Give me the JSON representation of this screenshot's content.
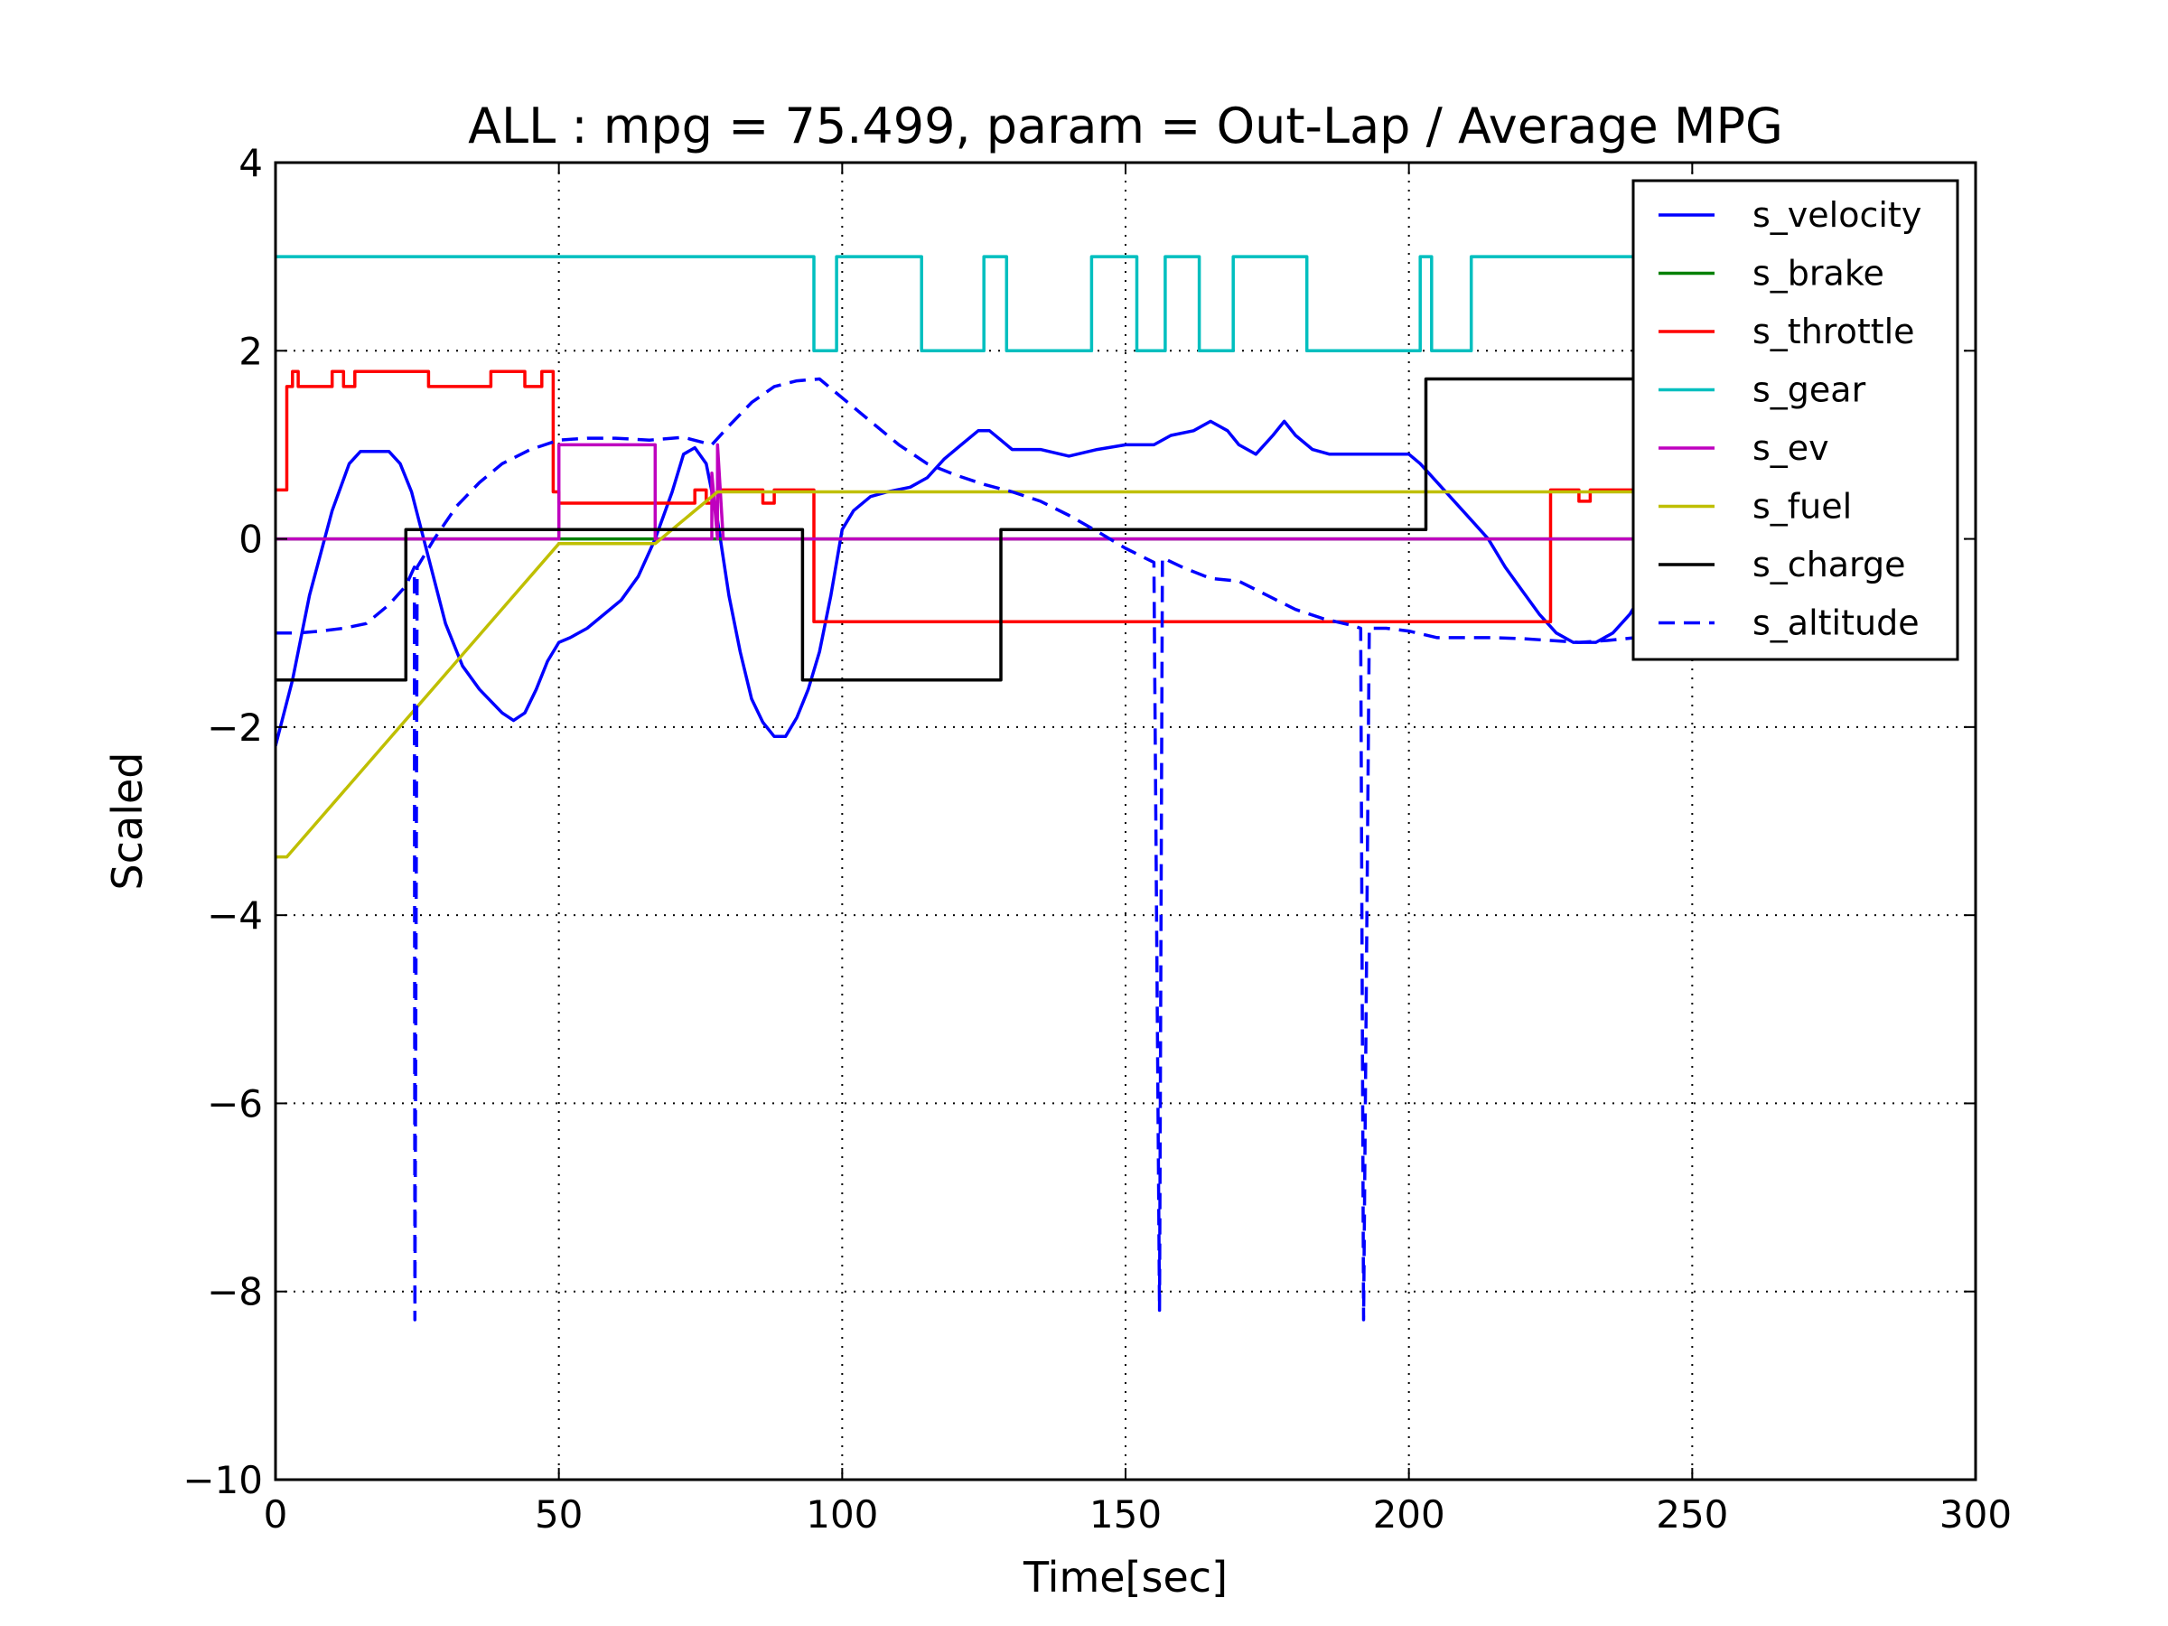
{
  "chart_data": {
    "type": "line",
    "title": "ALL : mpg = 75.499, param = Out-Lap / Average MPG",
    "xlabel": "Time[sec]",
    "ylabel": "Scaled",
    "xlim": [
      0,
      300
    ],
    "ylim": [
      -10,
      4
    ],
    "xticks": [
      0,
      50,
      100,
      150,
      200,
      250,
      300
    ],
    "yticks": [
      -10,
      -8,
      -6,
      -4,
      -2,
      0,
      2,
      4
    ],
    "xtick_labels": [
      "0",
      "50",
      "100",
      "150",
      "200",
      "250",
      "300"
    ],
    "ytick_labels": [
      "−10",
      "−8",
      "−6",
      "−4",
      "−2",
      "0",
      "2",
      "4"
    ],
    "grid": true,
    "legend_position": "top-right",
    "series": [
      {
        "name": "s_velocity",
        "color": "#0000ff",
        "style": "solid",
        "points": [
          [
            0,
            -2.2
          ],
          [
            3,
            -1.5
          ],
          [
            6,
            -0.6
          ],
          [
            10,
            0.3
          ],
          [
            13,
            0.8
          ],
          [
            15,
            0.93
          ],
          [
            20,
            0.93
          ],
          [
            22,
            0.8
          ],
          [
            24,
            0.5
          ],
          [
            27,
            -0.2
          ],
          [
            30,
            -0.9
          ],
          [
            33,
            -1.35
          ],
          [
            36,
            -1.6
          ],
          [
            40,
            -1.85
          ],
          [
            42,
            -1.93
          ],
          [
            44,
            -1.85
          ],
          [
            46,
            -1.6
          ],
          [
            48,
            -1.3
          ],
          [
            50,
            -1.1
          ],
          [
            52,
            -1.05
          ],
          [
            55,
            -0.95
          ],
          [
            58,
            -0.8
          ],
          [
            61,
            -0.65
          ],
          [
            64,
            -0.4
          ],
          [
            67,
            0.0
          ],
          [
            70,
            0.5
          ],
          [
            72,
            0.9
          ],
          [
            74,
            0.97
          ],
          [
            76,
            0.8
          ],
          [
            78,
            0.2
          ],
          [
            80,
            -0.6
          ],
          [
            82,
            -1.2
          ],
          [
            84,
            -1.7
          ],
          [
            86,
            -1.95
          ],
          [
            88,
            -2.1
          ],
          [
            90,
            -2.1
          ],
          [
            92,
            -1.9
          ],
          [
            94,
            -1.6
          ],
          [
            96,
            -1.2
          ],
          [
            98,
            -0.6
          ],
          [
            100,
            0.1
          ],
          [
            102,
            0.3
          ],
          [
            105,
            0.45
          ],
          [
            108,
            0.5
          ],
          [
            112,
            0.55
          ],
          [
            115,
            0.65
          ],
          [
            118,
            0.85
          ],
          [
            121,
            1.0
          ],
          [
            124,
            1.15
          ],
          [
            126,
            1.15
          ],
          [
            128,
            1.05
          ],
          [
            130,
            0.95
          ],
          [
            135,
            0.95
          ],
          [
            140,
            0.88
          ],
          [
            145,
            0.95
          ],
          [
            150,
            1.0
          ],
          [
            155,
            1.0
          ],
          [
            158,
            1.1
          ],
          [
            162,
            1.15
          ],
          [
            165,
            1.25
          ],
          [
            168,
            1.15
          ],
          [
            170,
            1.0
          ],
          [
            173,
            0.9
          ],
          [
            176,
            1.1
          ],
          [
            178,
            1.25
          ],
          [
            180,
            1.1
          ],
          [
            183,
            0.95
          ],
          [
            186,
            0.9
          ],
          [
            190,
            0.9
          ],
          [
            195,
            0.9
          ],
          [
            200,
            0.9
          ],
          [
            202,
            0.8
          ],
          [
            205,
            0.6
          ],
          [
            208,
            0.4
          ],
          [
            211,
            0.2
          ],
          [
            214,
            0.0
          ],
          [
            217,
            -0.3
          ],
          [
            220,
            -0.55
          ],
          [
            223,
            -0.8
          ],
          [
            226,
            -1.0
          ],
          [
            229,
            -1.1
          ],
          [
            233,
            -1.1
          ],
          [
            236,
            -1.0
          ],
          [
            239,
            -0.8
          ],
          [
            240,
            -0.7
          ]
        ]
      },
      {
        "name": "s_brake",
        "color": "#008000",
        "style": "solid",
        "points": [
          [
            0,
            0
          ],
          [
            240,
            0
          ]
        ]
      },
      {
        "name": "s_throttle",
        "color": "#ff0000",
        "style": "solid",
        "points": [
          [
            0,
            0.52
          ],
          [
            2,
            0.52
          ],
          [
            2,
            1.62
          ],
          [
            3,
            1.62
          ],
          [
            3,
            1.78
          ],
          [
            4,
            1.78
          ],
          [
            4,
            1.62
          ],
          [
            10,
            1.62
          ],
          [
            10,
            1.78
          ],
          [
            12,
            1.78
          ],
          [
            12,
            1.62
          ],
          [
            14,
            1.62
          ],
          [
            14,
            1.78
          ],
          [
            27,
            1.78
          ],
          [
            27,
            1.62
          ],
          [
            38,
            1.62
          ],
          [
            38,
            1.78
          ],
          [
            44,
            1.78
          ],
          [
            44,
            1.62
          ],
          [
            47,
            1.62
          ],
          [
            47,
            1.78
          ],
          [
            49,
            1.78
          ],
          [
            49,
            0.5
          ],
          [
            50,
            0.5
          ],
          [
            50,
            0.38
          ],
          [
            74,
            0.38
          ],
          [
            74,
            0.52
          ],
          [
            76,
            0.52
          ],
          [
            76,
            0.38
          ],
          [
            78,
            0.38
          ],
          [
            78,
            0.52
          ],
          [
            86,
            0.52
          ],
          [
            86,
            0.38
          ],
          [
            88,
            0.38
          ],
          [
            88,
            0.52
          ],
          [
            95,
            0.52
          ],
          [
            95,
            -0.88
          ],
          [
            225,
            -0.88
          ],
          [
            225,
            0.52
          ],
          [
            230,
            0.52
          ],
          [
            230,
            0.4
          ],
          [
            232,
            0.4
          ],
          [
            232,
            0.52
          ],
          [
            240,
            0.52
          ]
        ]
      },
      {
        "name": "s_gear",
        "color": "#00bfbf",
        "style": "solid",
        "points": [
          [
            0,
            3
          ],
          [
            95,
            3
          ],
          [
            95,
            2
          ],
          [
            99,
            2
          ],
          [
            99,
            3
          ],
          [
            114,
            3
          ],
          [
            114,
            2
          ],
          [
            125,
            2
          ],
          [
            125,
            3
          ],
          [
            129,
            3
          ],
          [
            129,
            2
          ],
          [
            144,
            2
          ],
          [
            144,
            3
          ],
          [
            152,
            3
          ],
          [
            152,
            2
          ],
          [
            157,
            2
          ],
          [
            157,
            3
          ],
          [
            163,
            3
          ],
          [
            163,
            2
          ],
          [
            169,
            2
          ],
          [
            169,
            3
          ],
          [
            182,
            3
          ],
          [
            182,
            2
          ],
          [
            202,
            2
          ],
          [
            202,
            3
          ],
          [
            204,
            3
          ],
          [
            204,
            2
          ],
          [
            211,
            2
          ],
          [
            211,
            3
          ],
          [
            240,
            3
          ]
        ]
      },
      {
        "name": "s_ev",
        "color": "#bf00bf",
        "style": "solid",
        "points": [
          [
            0,
            0
          ],
          [
            50,
            0
          ],
          [
            50,
            1.0
          ],
          [
            67,
            1.0
          ],
          [
            67,
            0
          ],
          [
            77,
            0
          ],
          [
            77,
            0.7
          ],
          [
            78,
            0
          ],
          [
            78,
            1.0
          ],
          [
            79,
            0
          ],
          [
            240,
            0
          ]
        ]
      },
      {
        "name": "s_fuel",
        "color": "#bfbf00",
        "style": "solid",
        "points": [
          [
            0,
            -3.38
          ],
          [
            2,
            -3.38
          ],
          [
            50,
            -0.05
          ],
          [
            67,
            -0.05
          ],
          [
            78,
            0.5
          ],
          [
            240,
            0.5
          ]
        ]
      },
      {
        "name": "s_charge",
        "color": "#000000",
        "style": "solid",
        "points": [
          [
            0,
            -1.5
          ],
          [
            23,
            -1.5
          ],
          [
            23,
            0.1
          ],
          [
            93,
            0.1
          ],
          [
            93,
            -1.5
          ],
          [
            128,
            -1.5
          ],
          [
            128,
            0.1
          ],
          [
            203,
            0.1
          ],
          [
            203,
            1.7
          ],
          [
            240,
            1.7
          ]
        ]
      },
      {
        "name": "s_altitude",
        "color": "#0000ff",
        "style": "dashed",
        "points": [
          [
            0,
            -1.0
          ],
          [
            4,
            -1.0
          ],
          [
            8,
            -0.98
          ],
          [
            12,
            -0.95
          ],
          [
            16,
            -0.9
          ],
          [
            20,
            -0.7
          ],
          [
            23,
            -0.5
          ],
          [
            24.5,
            -0.3
          ],
          [
            24.6,
            -8.3
          ],
          [
            25,
            -0.3
          ],
          [
            28,
            0.0
          ],
          [
            32,
            0.35
          ],
          [
            36,
            0.6
          ],
          [
            40,
            0.8
          ],
          [
            45,
            0.95
          ],
          [
            50,
            1.05
          ],
          [
            55,
            1.07
          ],
          [
            60,
            1.07
          ],
          [
            66,
            1.05
          ],
          [
            72,
            1.08
          ],
          [
            77,
            1.0
          ],
          [
            80,
            1.2
          ],
          [
            84,
            1.45
          ],
          [
            88,
            1.62
          ],
          [
            92,
            1.68
          ],
          [
            96,
            1.7
          ],
          [
            100,
            1.5
          ],
          [
            105,
            1.25
          ],
          [
            110,
            1.0
          ],
          [
            115,
            0.8
          ],
          [
            120,
            0.68
          ],
          [
            125,
            0.58
          ],
          [
            130,
            0.5
          ],
          [
            135,
            0.4
          ],
          [
            140,
            0.25
          ],
          [
            145,
            0.08
          ],
          [
            150,
            -0.1
          ],
          [
            155,
            -0.25
          ],
          [
            156,
            -8.2
          ],
          [
            156.5,
            -0.2
          ],
          [
            160,
            -0.3
          ],
          [
            165,
            -0.42
          ],
          [
            170,
            -0.45
          ],
          [
            175,
            -0.6
          ],
          [
            180,
            -0.75
          ],
          [
            185,
            -0.85
          ],
          [
            190,
            -0.92
          ],
          [
            191.5,
            -0.95
          ],
          [
            192,
            -8.3
          ],
          [
            193,
            -0.95
          ],
          [
            196,
            -0.95
          ],
          [
            200,
            -0.98
          ],
          [
            205,
            -1.05
          ],
          [
            210,
            -1.05
          ],
          [
            215,
            -1.05
          ],
          [
            220,
            -1.06
          ],
          [
            225,
            -1.08
          ],
          [
            230,
            -1.1
          ],
          [
            235,
            -1.08
          ],
          [
            240,
            -1.05
          ]
        ]
      }
    ]
  }
}
